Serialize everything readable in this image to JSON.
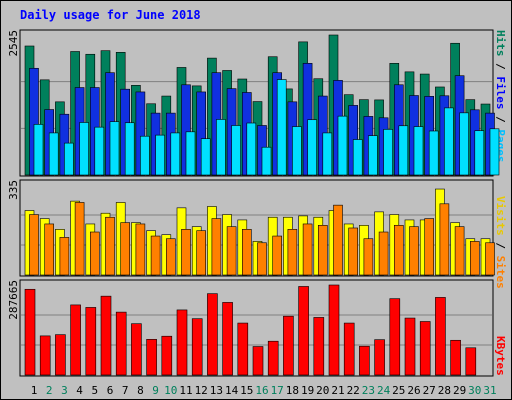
{
  "chart_data": {
    "type": "bar",
    "title": "Daily usage for June 2018",
    "days": [
      "1",
      "2",
      "3",
      "4",
      "5",
      "6",
      "7",
      "8",
      "9",
      "10",
      "11",
      "12",
      "13",
      "14",
      "15",
      "16",
      "17",
      "18",
      "19",
      "20",
      "21",
      "22",
      "23",
      "24",
      "25",
      "26",
      "27",
      "28",
      "29",
      "30",
      "31"
    ],
    "weekend_days": [
      "2",
      "3",
      "9",
      "10",
      "16",
      "17",
      "23",
      "24",
      "30",
      "31"
    ],
    "panels": [
      {
        "name": "hits-files-pages",
        "ymax_label": "2545",
        "ylim": [
          0,
          2545
        ],
        "legend": [
          {
            "text": "Hits",
            "color": "#00805c"
          },
          {
            "text": "Files",
            "color": "#0000ff"
          },
          {
            "text": "Pages",
            "color": "#00c0ff"
          }
        ],
        "series": [
          {
            "name": "Hits",
            "color": "#00805c",
            "values": [
              2345,
              1730,
              1330,
              2245,
              2195,
              2260,
              2230,
              1630,
              1295,
              1435,
              1955,
              1620,
              2125,
              1900,
              1745,
              1335,
              2150,
              1565,
              2420,
              1750,
              2595,
              1460,
              1370,
              1365,
              2030,
              1875,
              1835,
              1600,
              2395,
              1370,
              1290
            ]
          },
          {
            "name": "Files",
            "color": "#1030e0",
            "values": [
              1940,
              1190,
              1105,
              1590,
              1590,
              1860,
              1560,
              1510,
              1125,
              1125,
              1640,
              1510,
              1860,
              1570,
              1500,
              900,
              1860,
              1330,
              2030,
              1435,
              1720,
              1265,
              1065,
              1040,
              1640,
              1445,
              1430,
              1440,
              1805,
              1185,
              1125
            ]
          },
          {
            "name": "Pages",
            "color": "#00e0ff",
            "values": [
              920,
              765,
              580,
              955,
              870,
              970,
              950,
              705,
              725,
              765,
              785,
              660,
              1010,
              900,
              945,
              505,
              1735,
              880,
              1005,
              765,
              1070,
              645,
              715,
              830,
              895,
              880,
              800,
              1220,
              1130,
              805,
              840
            ]
          }
        ]
      },
      {
        "name": "visits-sites",
        "ymax_label": "335",
        "ylim": [
          0,
          335
        ],
        "legend": [
          {
            "text": "Visits",
            "color": "#ffe000"
          },
          {
            "text": "Sites",
            "color": "#ff8000"
          }
        ],
        "series": [
          {
            "name": "Visits",
            "color": "#ffff00",
            "values": [
              240,
              210,
              170,
              275,
              190,
              230,
              270,
              195,
              165,
              150,
              250,
              180,
              255,
              225,
              205,
              125,
              215,
              215,
              220,
              215,
              240,
              190,
              185,
              235,
              225,
              205,
              205,
              320,
              195,
              135,
              135
            ]
          },
          {
            "name": "Sites",
            "color": "#ff8000",
            "values": [
              225,
              190,
              140,
              270,
              160,
              215,
              195,
              190,
              145,
              135,
              170,
              165,
              210,
              180,
              170,
              120,
              145,
              170,
              190,
              185,
              260,
              175,
              135,
              160,
              185,
              180,
              210,
              265,
              180,
              125,
              120
            ]
          }
        ]
      },
      {
        "name": "kbytes",
        "ymax_label": "287665",
        "ylim": [
          0,
          287665
        ],
        "legend": [
          {
            "text": "KBytes",
            "color": "#ff0000"
          }
        ],
        "series": [
          {
            "name": "KBytes",
            "color": "#ff0000",
            "values": [
              274000,
              125000,
              129000,
              224000,
              216000,
              252000,
              201000,
              164000,
              114000,
              124000,
              208000,
              180000,
              260000,
              232000,
              166000,
              91000,
              108000,
              188000,
              283000,
              184000,
              292000,
              166000,
              92000,
              113000,
              244000,
              182000,
              171000,
              248000,
              111000,
              87000,
              0
            ]
          }
        ]
      }
    ]
  }
}
